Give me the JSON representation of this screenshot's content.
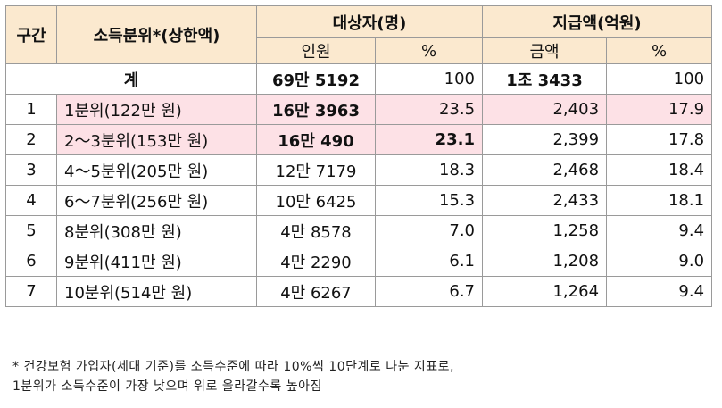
{
  "header": {
    "gugan": "구간",
    "income": "소득분위*(상한액)",
    "target": "대상자(명)",
    "payment": "지급액(억원)",
    "people": "인원",
    "pct1": "%",
    "amount": "금액",
    "pct2": "%"
  },
  "total": {
    "label": "계",
    "people": "69만 5192",
    "pct1": "100",
    "amount": "1조 3433",
    "pct2": "100"
  },
  "rows": [
    {
      "gu": "1",
      "income": "1분위(122만 원)",
      "people": "16만 3963",
      "pct1": "23.5",
      "amount": "2,403",
      "pct2": "17.9"
    },
    {
      "gu": "2",
      "income": "2～3분위(153만 원)",
      "people": "16만 490",
      "pct1": "23.1",
      "amount": "2,399",
      "pct2": "17.8"
    },
    {
      "gu": "3",
      "income": "4～5분위(205만 원)",
      "people": "12만 7179",
      "pct1": "18.3",
      "amount": "2,468",
      "pct2": "18.4"
    },
    {
      "gu": "4",
      "income": "6～7분위(256만 원)",
      "people": "10만 6425",
      "pct1": "15.3",
      "amount": "2,433",
      "pct2": "18.1"
    },
    {
      "gu": "5",
      "income": "8분위(308만 원)",
      "people": "4만 8578",
      "pct1": "7.0",
      "amount": "1,258",
      "pct2": "9.4"
    },
    {
      "gu": "6",
      "income": "9분위(411만 원)",
      "people": "4만 2290",
      "pct1": "6.1",
      "amount": "1,208",
      "pct2": "9.0"
    },
    {
      "gu": "7",
      "income": "10분위(514만 원)",
      "people": "4만 6267",
      "pct1": "6.7",
      "amount": "1,264",
      "pct2": "9.4"
    }
  ],
  "footnote": {
    "line1": "* 건강보험 가입자(세대 기준)를 소득수준에 따라 10%씩 10단계로 나눈 지표로,",
    "line2": "1분위가 소득수준이 가장 낮으며 위로 올라갈수록 높아짐"
  },
  "colors": {
    "header_bg": "#fbe9cf",
    "highlight_bg": "#fde1e6",
    "border": "#9a9a9a"
  }
}
